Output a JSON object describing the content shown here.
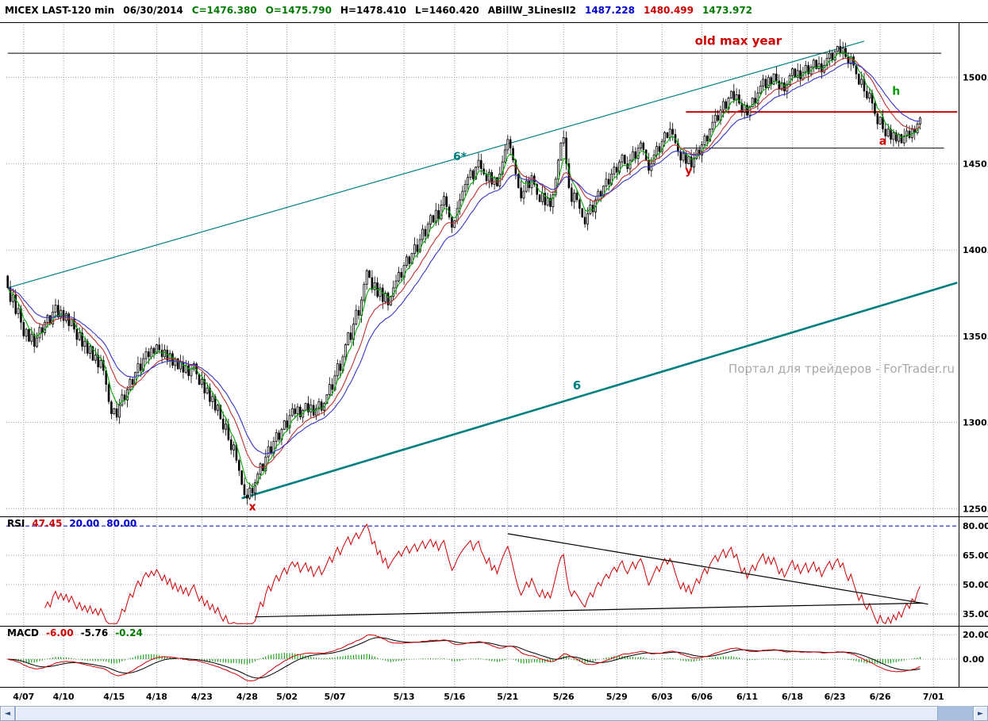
{
  "header": {
    "symbol": "MICEX LAST-120 min",
    "date": "06/30/2014",
    "close": "C=1476.380",
    "open": "O=1475.790",
    "high": "H=1478.410",
    "low": "L=1460.420",
    "study": "ABillW_3LinesII2",
    "ma_values": {
      "blue": "1487.228",
      "red": "1480.499",
      "green": "1473.972"
    }
  },
  "rsi_label": {
    "name": "RSI",
    "value": "47.45",
    "low_level": "20.00",
    "high_level": "80.00"
  },
  "macd_label": {
    "name": "MACD",
    "macd": "-6.00",
    "signal": "-5.76",
    "hist": "-0.24"
  },
  "watermark": "Портал для трейдеров - ForTrader.ru",
  "scrollbar": {
    "left_arrow": "◄",
    "right_arrow": "►"
  },
  "colors": {
    "candle": "#000000",
    "ma_fast_green": "#00a800",
    "ma_mid_red": "#c03030",
    "ma_slow_blue": "#3434c8",
    "trend_teal": "#008080",
    "rsi_line_red": "#cc0000",
    "rsi_level_blue": "#0000bb",
    "macd_hist_green": "#009600",
    "annotation_red": "#cc0000",
    "annotation_green": "#009900",
    "watermark_gray": "#a9a9a9"
  },
  "chart_data": {
    "type": "candlestick_with_indicators",
    "title": "MICEX LAST-120 min",
    "interval": "120 min",
    "last_bar": {
      "open": 1475.79,
      "high": 1478.41,
      "low": 1460.42,
      "close": 1476.38,
      "date": "06/30/2014"
    },
    "ylim": [
      1246,
      1532
    ],
    "total_slots": 358,
    "first_open": 1385,
    "y_ticks": [
      {
        "price": 1500,
        "label": "1500.0"
      },
      {
        "price": 1450,
        "label": "1450.0"
      },
      {
        "price": 1400,
        "label": "1400.0"
      },
      {
        "price": 1350,
        "label": "1350.0"
      },
      {
        "price": 1300,
        "label": "1300.0"
      },
      {
        "price": 1250,
        "label": "1250.0"
      }
    ],
    "x_ticks": [
      {
        "bar": 6,
        "label": "4/07"
      },
      {
        "bar": 21,
        "label": "4/10"
      },
      {
        "bar": 40,
        "label": "4/15"
      },
      {
        "bar": 56,
        "label": "4/18"
      },
      {
        "bar": 73,
        "label": "4/23"
      },
      {
        "bar": 90,
        "label": "4/28"
      },
      {
        "bar": 105,
        "label": "5/02"
      },
      {
        "bar": 123,
        "label": "5/07"
      },
      {
        "bar": 149,
        "label": "5/13"
      },
      {
        "bar": 168,
        "label": "5/16"
      },
      {
        "bar": 188,
        "label": "5/21"
      },
      {
        "bar": 209,
        "label": "5/26"
      },
      {
        "bar": 229,
        "label": "5/29"
      },
      {
        "bar": 246,
        "label": "6/03"
      },
      {
        "bar": 261,
        "label": "6/06"
      },
      {
        "bar": 278,
        "label": "6/11"
      },
      {
        "bar": 295,
        "label": "6/18"
      },
      {
        "bar": 311,
        "label": "6/23"
      },
      {
        "bar": 328,
        "label": "6/26"
      },
      {
        "bar": 348,
        "label": "7/01"
      }
    ],
    "closes": [
      1378,
      1370,
      1374,
      1363,
      1366,
      1358,
      1350,
      1354,
      1347,
      1351,
      1344,
      1349,
      1355,
      1352,
      1358,
      1362,
      1357,
      1364,
      1368,
      1361,
      1365,
      1359,
      1363,
      1356,
      1360,
      1354,
      1348,
      1352,
      1344,
      1347,
      1340,
      1344,
      1336,
      1339,
      1332,
      1336,
      1330,
      1322,
      1312,
      1305,
      1308,
      1303,
      1310,
      1316,
      1313,
      1319,
      1325,
      1322,
      1329,
      1334,
      1330,
      1337,
      1341,
      1338,
      1343,
      1340,
      1345,
      1342,
      1338,
      1342,
      1336,
      1340,
      1333,
      1337,
      1331,
      1335,
      1329,
      1333,
      1327,
      1331,
      1334,
      1328,
      1322,
      1325,
      1317,
      1320,
      1312,
      1315,
      1307,
      1310,
      1302,
      1296,
      1299,
      1290,
      1284,
      1287,
      1278,
      1272,
      1264,
      1258,
      1256,
      1262,
      1259,
      1265,
      1270,
      1276,
      1272,
      1280,
      1286,
      1282,
      1289,
      1294,
      1290,
      1296,
      1301,
      1297,
      1304,
      1308,
      1305,
      1309,
      1303,
      1307,
      1311,
      1306,
      1310,
      1304,
      1308,
      1312,
      1307,
      1311,
      1316,
      1322,
      1319,
      1327,
      1334,
      1330,
      1338,
      1345,
      1352,
      1348,
      1357,
      1365,
      1362,
      1371,
      1380,
      1388,
      1384,
      1377,
      1381,
      1373,
      1378,
      1370,
      1375,
      1368,
      1373,
      1378,
      1382,
      1387,
      1384,
      1391,
      1396,
      1392,
      1398,
      1403,
      1399,
      1406,
      1412,
      1408,
      1415,
      1420,
      1416,
      1423,
      1418,
      1426,
      1431,
      1425,
      1419,
      1413,
      1417,
      1424,
      1429,
      1434,
      1438,
      1442,
      1446,
      1441,
      1448,
      1452,
      1447,
      1444,
      1440,
      1445,
      1438,
      1442,
      1437,
      1444,
      1451,
      1458,
      1464,
      1459,
      1452,
      1444,
      1436,
      1430,
      1434,
      1440,
      1436,
      1443,
      1438,
      1432,
      1428,
      1433,
      1426,
      1430,
      1425,
      1432,
      1441,
      1452,
      1462,
      1465,
      1450,
      1436,
      1428,
      1433,
      1429,
      1424,
      1419,
      1415,
      1421,
      1426,
      1422,
      1429,
      1434,
      1431,
      1437,
      1441,
      1438,
      1444,
      1448,
      1445,
      1451,
      1455,
      1450,
      1447,
      1452,
      1457,
      1453,
      1459,
      1462,
      1458,
      1452,
      1446,
      1450,
      1455,
      1460,
      1457,
      1463,
      1468,
      1465,
      1470,
      1467,
      1462,
      1457,
      1452,
      1456,
      1450,
      1454,
      1448,
      1453,
      1458,
      1455,
      1461,
      1466,
      1463,
      1470,
      1474,
      1478,
      1475,
      1481,
      1486,
      1482,
      1488,
      1492,
      1487,
      1490,
      1485,
      1480,
      1484,
      1478,
      1483,
      1488,
      1485,
      1491,
      1495,
      1499,
      1494,
      1500,
      1496,
      1502,
      1498,
      1493,
      1497,
      1492,
      1496,
      1501,
      1505,
      1500,
      1504,
      1499,
      1503,
      1507,
      1502,
      1506,
      1510,
      1505,
      1508,
      1503,
      1507,
      1511,
      1514,
      1510,
      1515,
      1518,
      1514,
      1517,
      1512,
      1508,
      1512,
      1507,
      1502,
      1496,
      1499,
      1492,
      1488,
      1491,
      1485,
      1479,
      1473,
      1477,
      1470,
      1466,
      1470,
      1464,
      1468,
      1463,
      1467,
      1462,
      1466,
      1469,
      1465,
      1470,
      1468,
      1473,
      1476.4
    ],
    "moving_averages": [
      {
        "name": "fast-green",
        "period": 5,
        "color": "#00a800"
      },
      {
        "name": "mid-red",
        "period": 13,
        "color": "#c03030"
      },
      {
        "name": "slow-blue",
        "period": 21,
        "color": "#3434c8"
      }
    ],
    "trendlines": [
      {
        "name": "upper-channel-6star",
        "x1": 0,
        "y1": 1378,
        "x2": 322,
        "y2": 1521,
        "color": "#008080",
        "width": 1.2
      },
      {
        "name": "lower-trend-6",
        "x1": 88,
        "y1": 1256,
        "x2": 357,
        "y2": 1381,
        "color": "#008080",
        "width": 2.6
      }
    ],
    "hlines": [
      {
        "name": "old-max-year-level",
        "price": 1514,
        "x1": 0,
        "x2": 351,
        "color": "#000000",
        "width": 1
      },
      {
        "name": "resistance-red",
        "price": 1480,
        "x1": 255,
        "x2": 357,
        "color": "#cc0000",
        "width": 2
      },
      {
        "name": "support-black",
        "price": 1459,
        "x1": 254,
        "x2": 352,
        "color": "#000000",
        "width": 1
      }
    ],
    "annotations": [
      {
        "text": "old max year",
        "bar": 291,
        "price": 1519,
        "color": "#cc0000",
        "size": 15,
        "anchor": "end"
      },
      {
        "text": "6*",
        "bar": 170,
        "price": 1452,
        "color": "#008080",
        "size": 14,
        "anchor": "middle"
      },
      {
        "text": "6",
        "bar": 214,
        "price": 1319,
        "color": "#008080",
        "size": 15,
        "anchor": "middle"
      },
      {
        "text": "x",
        "bar": 92,
        "price": 1249,
        "color": "#cc0000",
        "size": 14,
        "anchor": "middle"
      },
      {
        "text": "y",
        "bar": 256,
        "price": 1444,
        "color": "#cc0000",
        "size": 14,
        "anchor": "middle"
      },
      {
        "text": "a",
        "bar": 329,
        "price": 1461,
        "color": "#cc0000",
        "size": 14,
        "anchor": "middle"
      },
      {
        "text": "h",
        "bar": 334,
        "price": 1490,
        "color": "#009900",
        "size": 14,
        "anchor": "middle"
      }
    ],
    "rsi": {
      "period": 14,
      "current": 47.45,
      "params": [
        20,
        80
      ],
      "ylim": [
        28.5,
        84.5
      ],
      "dashed_level": 80,
      "ticks": [
        {
          "v": 80,
          "label": "80.00"
        },
        {
          "v": 65,
          "label": "65.00"
        },
        {
          "v": 50,
          "label": "50.00"
        },
        {
          "v": 35,
          "label": "35.00"
        }
      ],
      "trendlines": [
        {
          "x1": 188,
          "v1": 76,
          "x2": 346,
          "v2": 40
        },
        {
          "x1": 93,
          "v1": 33.5,
          "x2": 344,
          "v2": 40.5
        }
      ]
    },
    "macd": {
      "fast": 12,
      "slow": 26,
      "signal": 9,
      "current_macd": -6.0,
      "current_signal": -5.76,
      "current_hist": -0.24,
      "ylim": [
        -22.6,
        26.5
      ],
      "ticks": [
        {
          "v": 20,
          "label": "20.00"
        },
        {
          "v": 0,
          "label": "0.00"
        }
      ]
    }
  }
}
